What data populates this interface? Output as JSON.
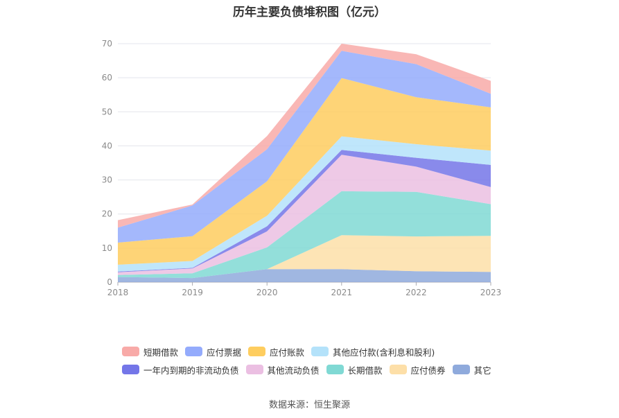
{
  "chart_data": {
    "type": "area",
    "stacked": true,
    "title": "历年主要负债堆积图（亿元）",
    "x": [
      "2018",
      "2019",
      "2020",
      "2021",
      "2022",
      "2023"
    ],
    "ylim": [
      0,
      70
    ],
    "yticks": [
      0,
      10,
      20,
      30,
      40,
      50,
      60,
      70
    ],
    "grid": true,
    "legend_position": "bottom",
    "series": [
      {
        "name": "其它",
        "color": "#8faadc",
        "values": [
          1.5,
          1.2,
          3.8,
          3.8,
          3.2,
          3.0
        ]
      },
      {
        "name": "应付债券",
        "color": "#fddfa8",
        "values": [
          0,
          0,
          0,
          10.0,
          10.2,
          10.6
        ]
      },
      {
        "name": "长期借款",
        "color": "#80d9d4",
        "values": [
          0.6,
          1.4,
          6.4,
          12.9,
          13.1,
          9.3
        ]
      },
      {
        "name": "其他流动负债",
        "color": "#ebbfe2",
        "values": [
          0.8,
          1.4,
          4.7,
          10.7,
          7.4,
          5.0
        ]
      },
      {
        "name": "一年内到期的非流动负债",
        "color": "#7476e8",
        "values": [
          0.2,
          0.2,
          1.5,
          1.4,
          2.6,
          6.5
        ]
      },
      {
        "name": "其他应付款(含利息和股利)",
        "color": "#b4e2fa",
        "values": [
          2.0,
          2.0,
          3.1,
          4.0,
          4.0,
          4.2
        ]
      },
      {
        "name": "应付账款",
        "color": "#fecd5f",
        "values": [
          6.5,
          7.3,
          10.1,
          17.1,
          13.8,
          12.7
        ]
      },
      {
        "name": "应付票据",
        "color": "#94abfc",
        "values": [
          4.4,
          9.0,
          9.4,
          8.0,
          9.7,
          4.0
        ]
      },
      {
        "name": "短期借款",
        "color": "#f8aaa8",
        "values": [
          2.2,
          0.3,
          3.9,
          2.1,
          2.9,
          3.8
        ]
      }
    ]
  },
  "legend": {
    "rows": [
      [
        {
          "label": "短期借款",
          "color": "#f8aaa8"
        },
        {
          "label": "应付票据",
          "color": "#94abfc"
        },
        {
          "label": "应付账款",
          "color": "#fecd5f"
        },
        {
          "label": "其他应付款(含利息和股利)",
          "color": "#b4e2fa"
        }
      ],
      [
        {
          "label": "一年内到期的非流动负债",
          "color": "#7476e8"
        },
        {
          "label": "其他流动负债",
          "color": "#ebbfe2"
        },
        {
          "label": "长期借款",
          "color": "#80d9d4"
        },
        {
          "label": "应付债券",
          "color": "#fddfa8"
        },
        {
          "label": "其它",
          "color": "#8faadc"
        }
      ]
    ]
  },
  "source_text": "数据来源：恒生聚源"
}
